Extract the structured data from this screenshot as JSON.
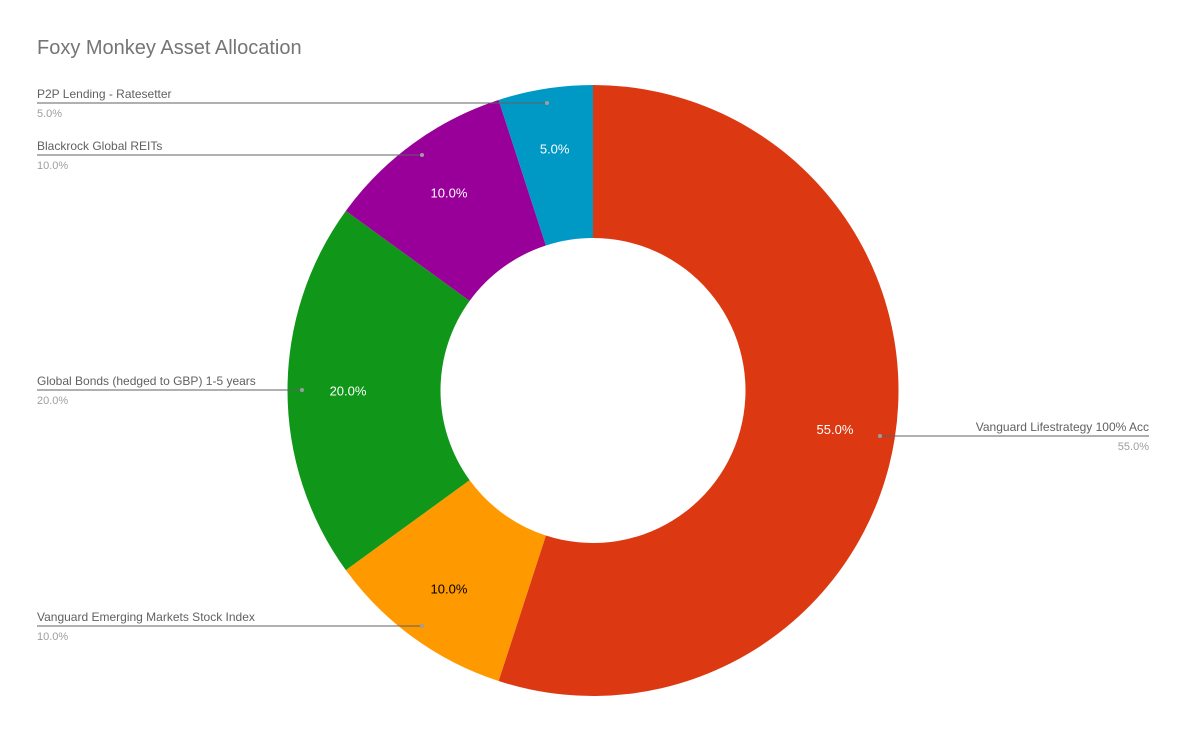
{
  "chart_data": {
    "type": "pie",
    "donut": true,
    "title": "Foxy Monkey Asset Allocation",
    "slices": [
      {
        "label": "Vanguard Lifestrategy 100% Acc",
        "value": 55.0,
        "display": "55.0%",
        "color": "#dc3912",
        "text_color": "#ffffff"
      },
      {
        "label": "Vanguard Emerging Markets Stock Index",
        "value": 10.0,
        "display": "10.0%",
        "color": "#ff9900",
        "text_color": "#000000"
      },
      {
        "label": "Global Bonds (hedged to GBP) 1-5 years",
        "value": 20.0,
        "display": "20.0%",
        "color": "#109618",
        "text_color": "#ffffff"
      },
      {
        "label": "Blackrock Global REITs",
        "value": 10.0,
        "display": "10.0%",
        "color": "#990099",
        "text_color": "#ffffff"
      },
      {
        "label": "P2P Lending - Ratesetter",
        "value": 5.0,
        "display": "5.0%",
        "color": "#0099c6",
        "text_color": "#ffffff"
      }
    ],
    "legend": "labeled-callouts"
  }
}
